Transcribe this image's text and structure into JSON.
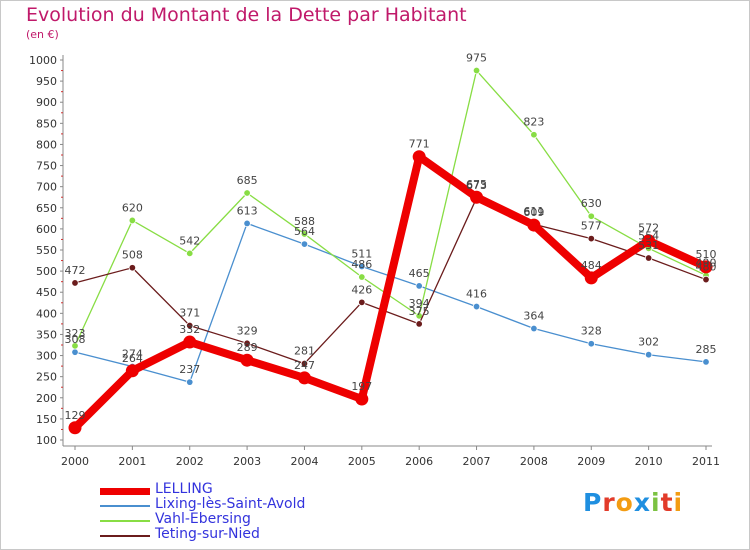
{
  "title": "Evolution du Montant de la Dette par Habitant",
  "unit": "(en €)",
  "logo_text": "Proxiti",
  "chart_data": {
    "type": "line",
    "title": "Evolution du Montant de la Dette par Habitant",
    "ylabel": "(en €)",
    "xlabel": "",
    "ylim": [
      100,
      1000
    ],
    "yticks": [
      100,
      150,
      200,
      250,
      300,
      350,
      400,
      450,
      500,
      550,
      600,
      650,
      700,
      750,
      800,
      850,
      900,
      950,
      1000
    ],
    "x": [
      "2000",
      "2001",
      "2002",
      "2003",
      "2004",
      "2005",
      "2006",
      "2007",
      "2008",
      "2009",
      "2010",
      "2011"
    ],
    "grid": false,
    "legend_position": "bottom-left",
    "series": [
      {
        "name": "LELLING",
        "color": "#ee0000",
        "values": [
          129,
          264,
          332,
          289,
          247,
          197,
          771,
          675,
          609,
          484,
          572,
          510
        ]
      },
      {
        "name": "Lixing-lès-Saint-Avold",
        "color": "#4a8fcf",
        "values": [
          308,
          274,
          237,
          613,
          564,
          511,
          465,
          416,
          364,
          328,
          302,
          285
        ]
      },
      {
        "name": "Vahl-Ebersing",
        "color": "#88dd44",
        "values": [
          323,
          620,
          542,
          685,
          588,
          486,
          394,
          975,
          823,
          630,
          554,
          490
        ]
      },
      {
        "name": "Teting-sur-Nied",
        "color": "#6b1c1c",
        "values": [
          472,
          508,
          371,
          329,
          281,
          426,
          375,
          673,
          611,
          577,
          531,
          480
        ]
      }
    ]
  }
}
